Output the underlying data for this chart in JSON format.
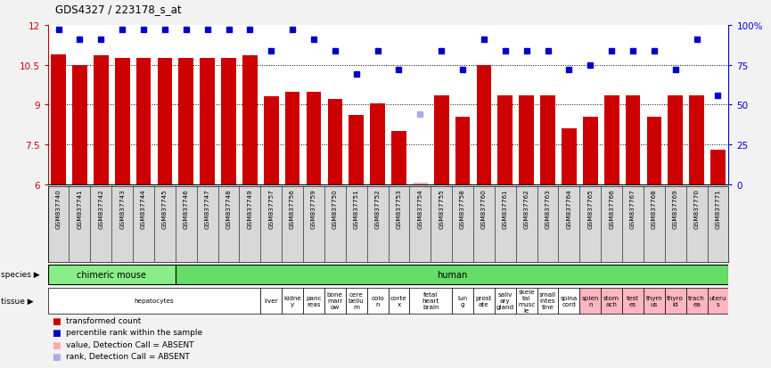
{
  "title": "GDS4327 / 223178_s_at",
  "sample_ids": [
    "GSM837740",
    "GSM837741",
    "GSM837742",
    "GSM837743",
    "GSM837744",
    "GSM837745",
    "GSM837746",
    "GSM837747",
    "GSM837748",
    "GSM837749",
    "GSM837757",
    "GSM837756",
    "GSM837759",
    "GSM837750",
    "GSM837751",
    "GSM837752",
    "GSM837753",
    "GSM837754",
    "GSM837755",
    "GSM837758",
    "GSM837760",
    "GSM837761",
    "GSM837762",
    "GSM837763",
    "GSM837764",
    "GSM837765",
    "GSM837766",
    "GSM837767",
    "GSM837768",
    "GSM837769",
    "GSM837770",
    "GSM837771"
  ],
  "bar_values": [
    10.9,
    10.5,
    10.85,
    10.75,
    10.75,
    10.75,
    10.75,
    10.75,
    10.75,
    10.85,
    9.3,
    9.5,
    9.5,
    9.2,
    8.6,
    9.05,
    8.0,
    6.05,
    9.35,
    8.55,
    10.5,
    9.35,
    9.35,
    9.35,
    8.1,
    8.55,
    9.35,
    9.35,
    8.55,
    9.35,
    9.35,
    7.3
  ],
  "bar_absent": [
    false,
    false,
    false,
    false,
    false,
    false,
    false,
    false,
    false,
    false,
    false,
    false,
    false,
    false,
    false,
    false,
    false,
    true,
    false,
    false,
    false,
    false,
    false,
    false,
    false,
    false,
    false,
    false,
    false,
    false,
    false,
    false
  ],
  "dot_values": [
    97,
    91,
    91,
    97,
    97,
    97,
    97,
    97,
    97,
    97,
    84,
    97,
    91,
    84,
    69,
    84,
    72,
    44,
    84,
    72,
    91,
    84,
    84,
    84,
    72,
    75,
    84,
    84,
    84,
    72,
    91,
    56
  ],
  "dot_absent": [
    false,
    false,
    false,
    false,
    false,
    false,
    false,
    false,
    false,
    false,
    false,
    false,
    false,
    false,
    false,
    false,
    false,
    true,
    false,
    false,
    false,
    false,
    false,
    false,
    false,
    false,
    false,
    false,
    false,
    false,
    false,
    false
  ],
  "ymin": 6,
  "ymax": 12,
  "yticks": [
    6,
    7.5,
    9,
    10.5,
    12
  ],
  "ytick_labels": [
    "6",
    "7.5",
    "9",
    "10.5",
    "12"
  ],
  "y2min": 0,
  "y2max": 100,
  "y2ticks": [
    0,
    25,
    50,
    75,
    100
  ],
  "y2tick_labels": [
    "0",
    "25",
    "50",
    "75",
    "100%"
  ],
  "bar_color": "#CC0000",
  "bar_absent_color": "#FFAAAA",
  "dot_color": "#0000CC",
  "dot_absent_color": "#AAAAEE",
  "bg_plot": "#FFFFFF",
  "bg_fig": "#F2F2F2",
  "species_groups": [
    {
      "label": "chimeric mouse",
      "start": 0,
      "end": 6,
      "color": "#88EE88"
    },
    {
      "label": "human",
      "start": 6,
      "end": 32,
      "color": "#66DD66"
    }
  ],
  "tissue_groups": [
    {
      "label": "hepatocytes",
      "start": 0,
      "end": 10,
      "color": "#FFFFFF"
    },
    {
      "label": "liver",
      "start": 10,
      "end": 11,
      "color": "#FFFFFF"
    },
    {
      "label": "kidne\ny",
      "start": 11,
      "end": 12,
      "color": "#FFFFFF"
    },
    {
      "label": "panc\nreas",
      "start": 12,
      "end": 13,
      "color": "#FFFFFF"
    },
    {
      "label": "bone\nmarr\now",
      "start": 13,
      "end": 14,
      "color": "#FFFFFF"
    },
    {
      "label": "cere\nbellu\nm",
      "start": 14,
      "end": 15,
      "color": "#FFFFFF"
    },
    {
      "label": "colo\nn",
      "start": 15,
      "end": 16,
      "color": "#FFFFFF"
    },
    {
      "label": "corte\nx",
      "start": 16,
      "end": 17,
      "color": "#FFFFFF"
    },
    {
      "label": "fetal\nheart\nbrain",
      "start": 17,
      "end": 19,
      "color": "#FFFFFF"
    },
    {
      "label": "lun\ng",
      "start": 19,
      "end": 20,
      "color": "#FFFFFF"
    },
    {
      "label": "prost\nate",
      "start": 20,
      "end": 21,
      "color": "#FFFFFF"
    },
    {
      "label": "saliv\nary\ngland",
      "start": 21,
      "end": 22,
      "color": "#FFFFFF"
    },
    {
      "label": "skele\ntal\nmusc\nle",
      "start": 22,
      "end": 23,
      "color": "#FFFFFF"
    },
    {
      "label": "small\nintes\ntine",
      "start": 23,
      "end": 24,
      "color": "#FFFFFF"
    },
    {
      "label": "spina\ncord",
      "start": 24,
      "end": 25,
      "color": "#FFFFFF"
    },
    {
      "label": "splen\nn",
      "start": 25,
      "end": 26,
      "color": "#FFB6C1"
    },
    {
      "label": "stom\nach",
      "start": 26,
      "end": 27,
      "color": "#FFB6C1"
    },
    {
      "label": "test\nes",
      "start": 27,
      "end": 28,
      "color": "#FFB6C1"
    },
    {
      "label": "thym\nus",
      "start": 28,
      "end": 29,
      "color": "#FFB6C1"
    },
    {
      "label": "thyro\nid",
      "start": 29,
      "end": 30,
      "color": "#FFB6C1"
    },
    {
      "label": "trach\nea",
      "start": 30,
      "end": 31,
      "color": "#FFB6C1"
    },
    {
      "label": "uteru\ns",
      "start": 31,
      "end": 32,
      "color": "#FFB6C1"
    }
  ],
  "legend_items": [
    {
      "color": "#CC0000",
      "label": "transformed count"
    },
    {
      "color": "#0000CC",
      "label": "percentile rank within the sample"
    },
    {
      "color": "#FFAAAA",
      "label": "value, Detection Call = ABSENT"
    },
    {
      "color": "#AAAAEE",
      "label": "rank, Detection Call = ABSENT"
    }
  ]
}
